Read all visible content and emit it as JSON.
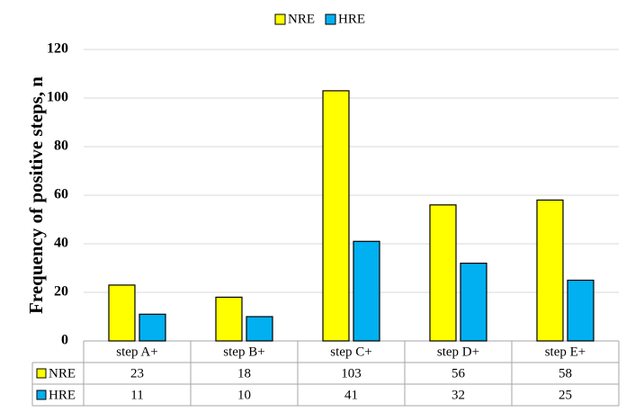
{
  "chart_data": {
    "type": "bar",
    "ylabel": "Frequency of positive steps, n",
    "categories": [
      "step A+",
      "step B+",
      "step C+",
      "step D+",
      "step E+"
    ],
    "series": [
      {
        "name": "NRE",
        "color": "#ffff00",
        "values": [
          23,
          18,
          103,
          56,
          58
        ]
      },
      {
        "name": "HRE",
        "color": "#00b0f0",
        "values": [
          11,
          10,
          41,
          32,
          25
        ]
      }
    ],
    "ylim": [
      0,
      120
    ],
    "yticks": [
      0,
      20,
      40,
      60,
      80,
      100,
      120
    ],
    "grid": true,
    "legend": "top"
  }
}
